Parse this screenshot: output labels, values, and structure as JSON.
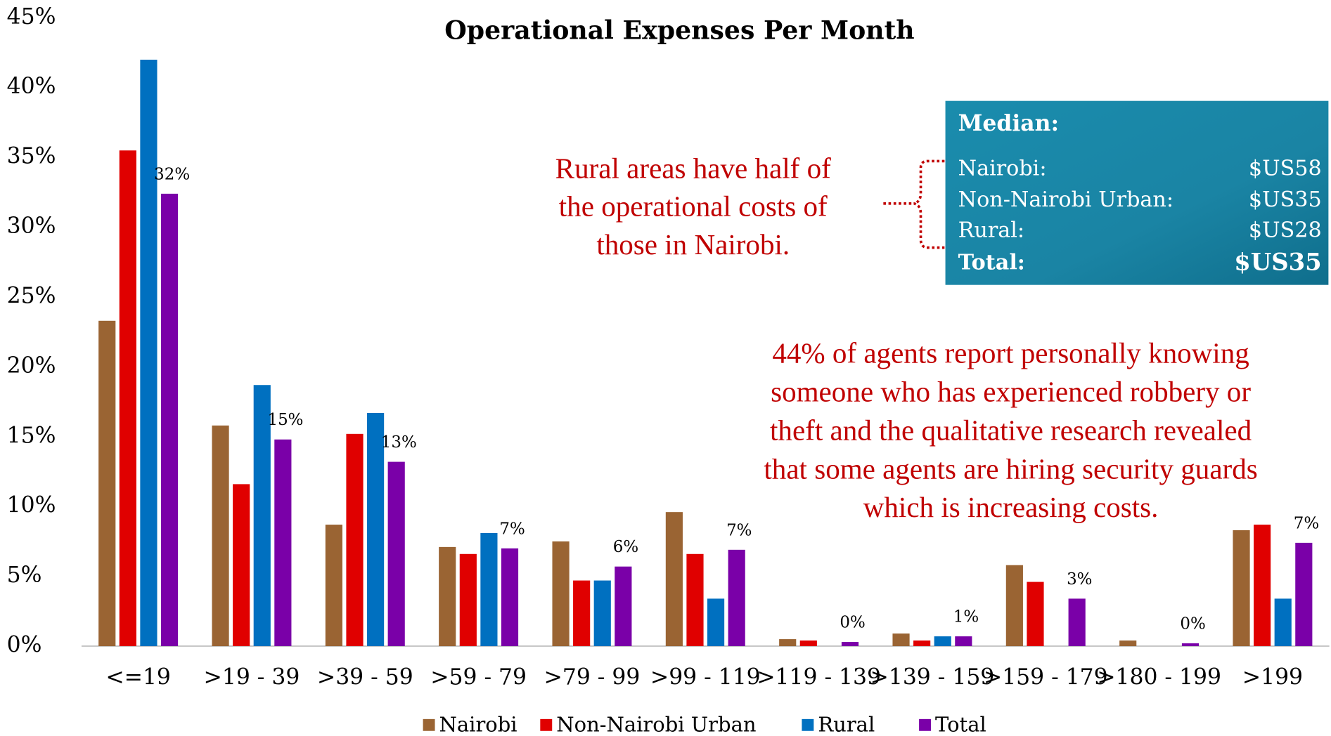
{
  "chart_data": {
    "type": "bar",
    "title": "Operational Expenses Per Month",
    "categories": [
      "<=19",
      ">19 - 39",
      ">39 - 59",
      ">59 - 79",
      ">79 - 99",
      ">99 - 119",
      ">119 - 139",
      ">139 - 159",
      ">159 - 179",
      ">180 - 199",
      ">199"
    ],
    "series": [
      {
        "name": "Nairobi",
        "color": "#9a6433",
        "values": [
          23.3,
          15.8,
          8.7,
          7.1,
          7.5,
          9.6,
          0.5,
          0.9,
          5.8,
          0.4,
          8.3
        ]
      },
      {
        "name": "Non-Nairobi Urban",
        "color": "#e00000",
        "values": [
          35.5,
          11.6,
          15.2,
          6.6,
          4.7,
          6.6,
          0.4,
          0.4,
          4.6,
          0,
          8.7
        ]
      },
      {
        "name": "Rural",
        "color": "#0070c0",
        "values": [
          42.0,
          18.7,
          16.7,
          8.1,
          4.7,
          3.4,
          0,
          0.7,
          0,
          0,
          3.4
        ]
      },
      {
        "name": "Total",
        "color": "#7a00a8",
        "values": [
          32.4,
          14.8,
          13.2,
          7.0,
          5.7,
          6.9,
          0.3,
          0.7,
          3.4,
          0.2,
          7.4
        ],
        "value_labels": [
          "32%",
          "15%",
          "13%",
          "7%",
          "6%",
          "7%",
          "0%",
          "1%",
          "3%",
          "0%",
          "7%"
        ]
      }
    ],
    "ylim": [
      0,
      45
    ],
    "yticks": [
      {
        "value": 0,
        "label": "0%"
      },
      {
        "value": 5,
        "label": "5%"
      },
      {
        "value": 10,
        "label": "10%"
      },
      {
        "value": 15,
        "label": "15%"
      },
      {
        "value": 20,
        "label": "20%"
      },
      {
        "value": 25,
        "label": "25%"
      },
      {
        "value": 30,
        "label": "30%"
      },
      {
        "value": 35,
        "label": "35%"
      },
      {
        "value": 40,
        "label": "40%"
      },
      {
        "value": 45,
        "label": "45%"
      }
    ],
    "legend": "bottom",
    "annotations": [
      {
        "lines": [
          "Rural areas have half of",
          "the operational costs of",
          "those in Nairobi."
        ]
      },
      {
        "lines": [
          "44% of agents report personally knowing",
          "someone who has experienced robbery or",
          "theft and the qualitative research revealed",
          "that some agents are hiring security guards",
          "which is increasing costs."
        ]
      }
    ],
    "median_box": {
      "title": "Median:",
      "rows": [
        {
          "label": "Nairobi:",
          "value": "$US58"
        },
        {
          "label": "Non-Nairobi Urban:",
          "value": "$US35"
        },
        {
          "label": "Rural:",
          "value": "$US28"
        },
        {
          "label": "Total:",
          "value": "$US35"
        }
      ]
    }
  }
}
